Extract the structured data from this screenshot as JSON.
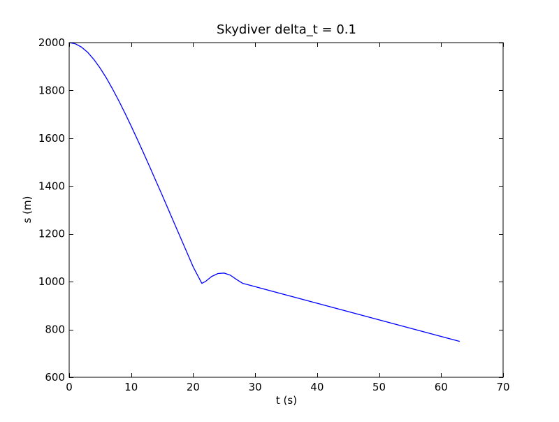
{
  "chart_data": {
    "type": "line",
    "title": "Skydiver delta_t = 0.1",
    "xlabel": "t (s)",
    "ylabel": "s (m)",
    "xlim": [
      0,
      70
    ],
    "ylim": [
      600,
      2000
    ],
    "xticks": [
      0,
      10,
      20,
      30,
      40,
      50,
      60,
      70
    ],
    "yticks": [
      600,
      800,
      1000,
      1200,
      1400,
      1600,
      1800,
      2000
    ],
    "xtick_labels": [
      "0",
      "10",
      "20",
      "30",
      "40",
      "50",
      "60",
      "70"
    ],
    "ytick_labels": [
      "600",
      "800",
      "1000",
      "1200",
      "1400",
      "1600",
      "1800",
      "2000"
    ],
    "grid": false,
    "series": [
      {
        "color": "#0000ff",
        "points": [
          [
            0,
            2000
          ],
          [
            1,
            1995
          ],
          [
            2,
            1981
          ],
          [
            3,
            1959
          ],
          [
            4,
            1929
          ],
          [
            5,
            1893
          ],
          [
            6,
            1852
          ],
          [
            7,
            1806
          ],
          [
            8,
            1757
          ],
          [
            9,
            1705
          ],
          [
            10,
            1651
          ],
          [
            11,
            1595
          ],
          [
            12,
            1538
          ],
          [
            13,
            1480
          ],
          [
            14,
            1421
          ],
          [
            15,
            1362
          ],
          [
            16,
            1302
          ],
          [
            17,
            1242
          ],
          [
            18,
            1182
          ],
          [
            19,
            1122
          ],
          [
            20,
            1062
          ],
          [
            21.4,
            993
          ],
          [
            22,
            1001
          ],
          [
            23,
            1022
          ],
          [
            24,
            1034
          ],
          [
            25,
            1036
          ],
          [
            26,
            1027
          ],
          [
            27,
            1009
          ],
          [
            28,
            993
          ],
          [
            63,
            750
          ]
        ]
      }
    ]
  }
}
